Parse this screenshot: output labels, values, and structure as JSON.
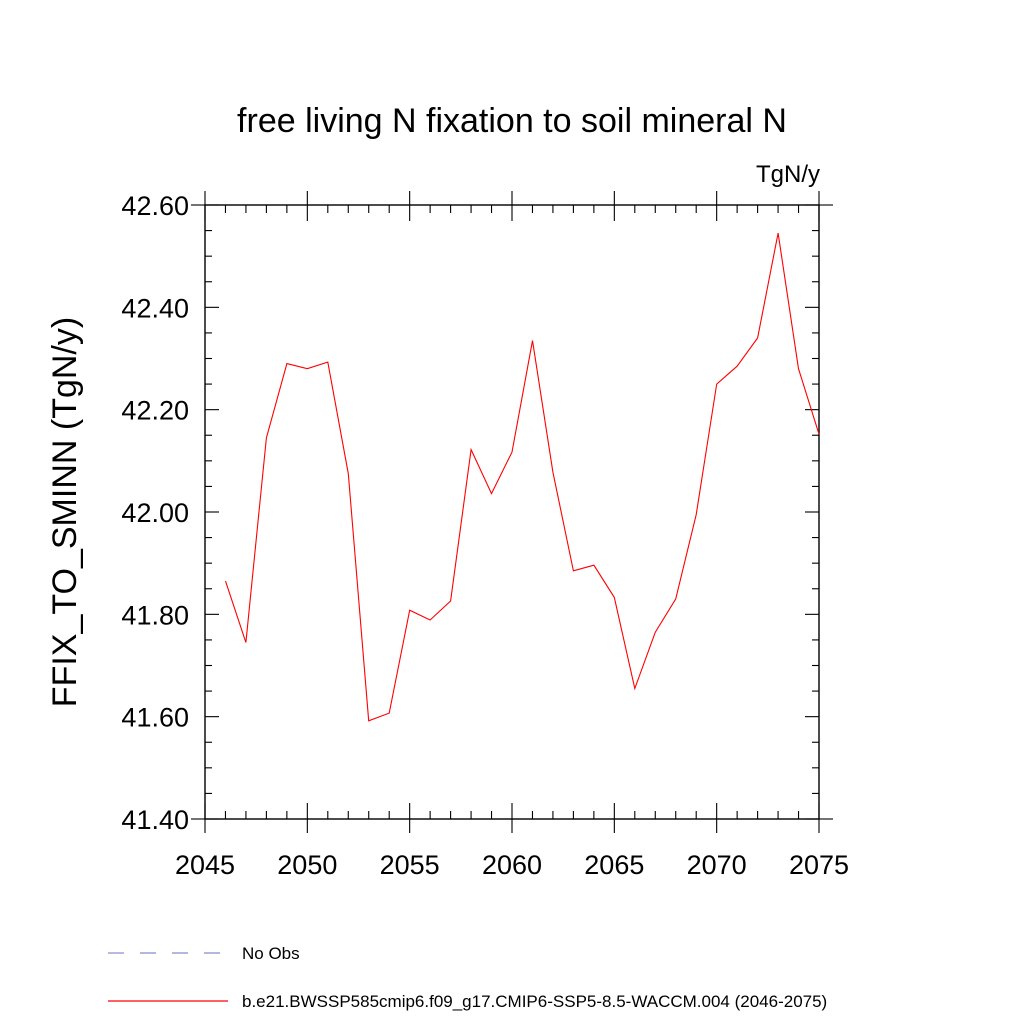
{
  "chart_data": {
    "type": "line",
    "title": "free living N fixation to soil mineral N",
    "units": "TgN/y",
    "ylabel": "FFIX_TO_SMINN  (TgN/y)",
    "xlabel": "",
    "xlim": [
      2045,
      2075
    ],
    "ylim": [
      41.4,
      42.6
    ],
    "xticks": [
      2045,
      2050,
      2055,
      2060,
      2065,
      2070,
      2075
    ],
    "xtick_labels": [
      "2045",
      "2050",
      "2055",
      "2060",
      "2065",
      "2070",
      "2075"
    ],
    "yticks": [
      41.4,
      41.6,
      41.8,
      42.0,
      42.2,
      42.4,
      42.6
    ],
    "ytick_labels": [
      "41.40",
      "41.60",
      "41.80",
      "42.00",
      "42.20",
      "42.40",
      "42.60"
    ],
    "grid": false,
    "series": [
      {
        "name": "b.e21.BWSSP585cmip6.f09_g17.CMIP6-SSP5-8.5-WACCM.004 (2046-2075)",
        "color": "#ff0000",
        "x": [
          2046,
          2047,
          2048,
          2049,
          2050,
          2051,
          2052,
          2053,
          2054,
          2055,
          2056,
          2057,
          2058,
          2059,
          2060,
          2061,
          2062,
          2063,
          2064,
          2065,
          2066,
          2067,
          2068,
          2069,
          2070,
          2071,
          2072,
          2073,
          2074,
          2075
        ],
        "values": [
          41.865,
          41.745,
          42.145,
          42.29,
          42.28,
          42.293,
          42.075,
          41.592,
          41.607,
          41.808,
          41.789,
          41.826,
          42.122,
          42.036,
          42.117,
          42.335,
          42.078,
          41.885,
          41.896,
          41.833,
          41.655,
          41.765,
          41.83,
          41.995,
          42.25,
          42.285,
          42.34,
          42.545,
          42.28,
          42.152
        ]
      }
    ],
    "legend": [
      {
        "label": "No Obs",
        "style": "dashed",
        "color": "#8a8ad0"
      },
      {
        "label": "b.e21.BWSSP585cmip6.f09_g17.CMIP6-SSP5-8.5-WACCM.004 (2046-2075)",
        "style": "solid",
        "color": "#ff0000"
      }
    ]
  }
}
